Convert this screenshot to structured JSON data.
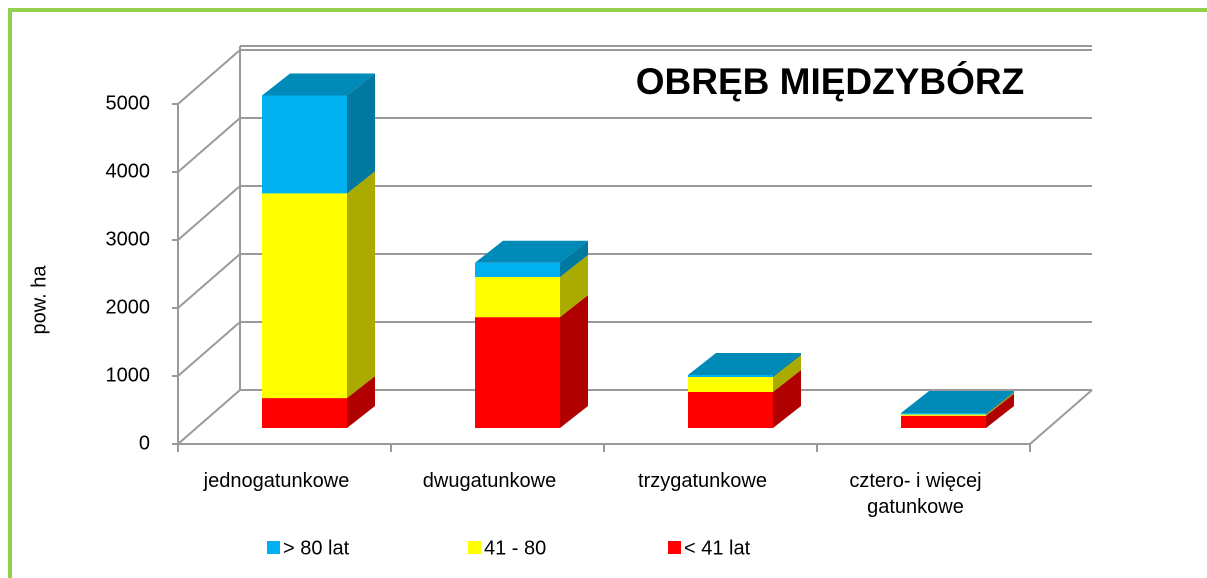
{
  "chart_data": {
    "type": "bar3d_stacked",
    "title": "OBRĘB MIĘDZYBÓRZ",
    "y_label": "pow. ha",
    "categories": [
      "jednogatunkowe",
      "dwugatunkowe",
      "trzygatunkowe",
      "cztero- i więcej gatunkowe"
    ],
    "series": [
      {
        "name": "< 41 lat",
        "color": "#ff0000",
        "side": "#b00000",
        "values": [
          440,
          1630,
          530,
          180
        ]
      },
      {
        "name": "41 - 80",
        "color": "#ffff00",
        "side": "#aaaa00",
        "values": [
          3010,
          590,
          220,
          20
        ]
      },
      {
        "name": "> 80 lat",
        "color": "#00b0f0",
        "side": "#0078a0",
        "values": [
          1440,
          210,
          30,
          20
        ]
      }
    ],
    "ylim": [
      0,
      5000
    ],
    "yticks": [
      0,
      1000,
      2000,
      3000,
      4000,
      5000
    ],
    "grid": true
  }
}
